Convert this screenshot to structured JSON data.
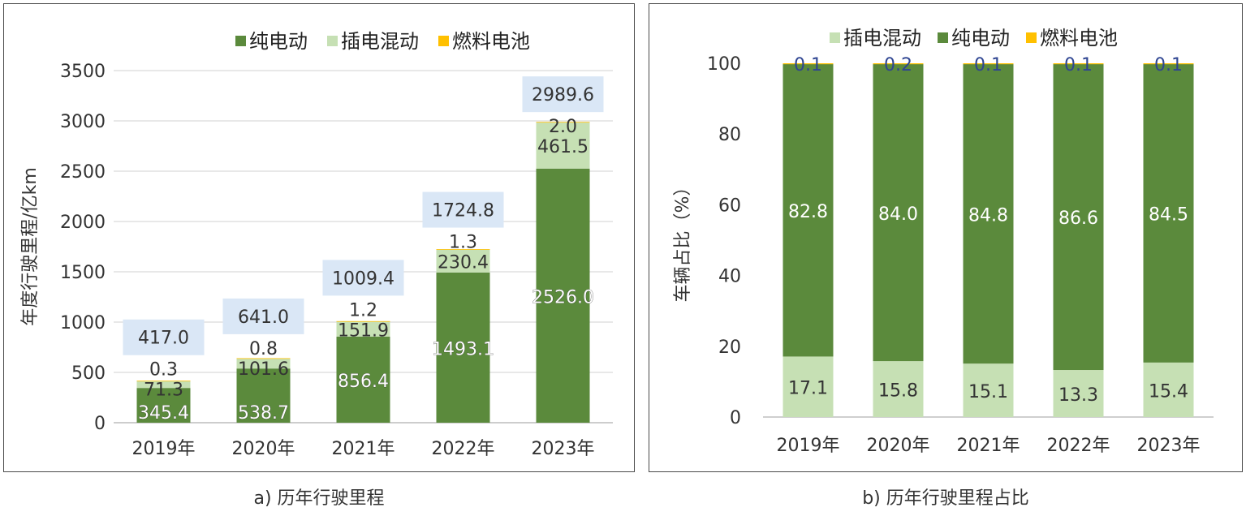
{
  "colors": {
    "bev": "#5b8a3c",
    "phev": "#c6e0b4",
    "fcv": "#ffc000",
    "total_label_bg": "#dae7f6",
    "grid": "#d9d9d9",
    "axis_text": "#333333",
    "pct_top_text": "#2f4592"
  },
  "captions": {
    "a": "a) 历年行驶里程",
    "b": "b) 历年行驶里程占比"
  },
  "chart_data": [
    {
      "type": "bar",
      "stacked": true,
      "title": "",
      "caption": "a) 历年行驶里程",
      "categories": [
        "2019年",
        "2020年",
        "2021年",
        "2022年",
        "2023年"
      ],
      "xlabel": "",
      "ylabel": "年度行驶里程/亿km",
      "ylim": [
        0,
        3500
      ],
      "yticks": [
        "0",
        "500",
        "1000",
        "1500",
        "2000",
        "2500",
        "3000",
        "3500"
      ],
      "grid": true,
      "legend_position": "top-right",
      "legend": [
        "纯电动",
        "插电混动",
        "燃料电池"
      ],
      "series": [
        {
          "name": "纯电动",
          "key": "bev",
          "values": [
            345.4,
            538.7,
            856.4,
            1493.1,
            2526.0
          ],
          "labels": [
            "345.4",
            "538.7",
            "856.4",
            "1493.1",
            "2526.0"
          ]
        },
        {
          "name": "插电混动",
          "key": "phev",
          "values": [
            71.3,
            101.6,
            151.9,
            230.4,
            461.5
          ],
          "labels": [
            "71.3",
            "101.6",
            "151.9",
            "230.4",
            "461.5"
          ]
        },
        {
          "name": "燃料电池",
          "key": "fcv",
          "values": [
            0.3,
            0.8,
            1.2,
            1.3,
            2.0
          ],
          "labels": [
            "0.3",
            "0.8",
            "1.2",
            "1.3",
            "2.0"
          ]
        }
      ],
      "totals": [
        "417.0",
        "641.0",
        "1009.4",
        "1724.8",
        "2989.6"
      ]
    },
    {
      "type": "bar",
      "stacked": true,
      "title": "",
      "caption": "b) 历年行驶里程占比",
      "categories": [
        "2019年",
        "2020年",
        "2021年",
        "2022年",
        "2023年"
      ],
      "xlabel": "",
      "ylabel": "车辆占比（%）",
      "ylim": [
        0,
        100
      ],
      "yticks": [
        "0",
        "20",
        "40",
        "60",
        "80",
        "100"
      ],
      "grid": false,
      "legend_position": "top-right",
      "legend": [
        "插电混动",
        "纯电动",
        "燃料电池"
      ],
      "series": [
        {
          "name": "插电混动",
          "key": "phev",
          "values": [
            17.1,
            15.8,
            15.1,
            13.3,
            15.4
          ],
          "labels": [
            "17.1",
            "15.8",
            "15.1",
            "13.3",
            "15.4"
          ]
        },
        {
          "name": "纯电动",
          "key": "bev",
          "values": [
            82.8,
            84.0,
            84.8,
            86.6,
            84.5
          ],
          "labels": [
            "82.8",
            "84.0",
            "84.8",
            "86.6",
            "84.5"
          ]
        },
        {
          "name": "燃料电池",
          "key": "fcv",
          "values": [
            0.1,
            0.2,
            0.1,
            0.1,
            0.1
          ],
          "labels": [
            "0.1",
            "0.2",
            "0.1",
            "0.1",
            "0.1"
          ]
        }
      ]
    }
  ]
}
